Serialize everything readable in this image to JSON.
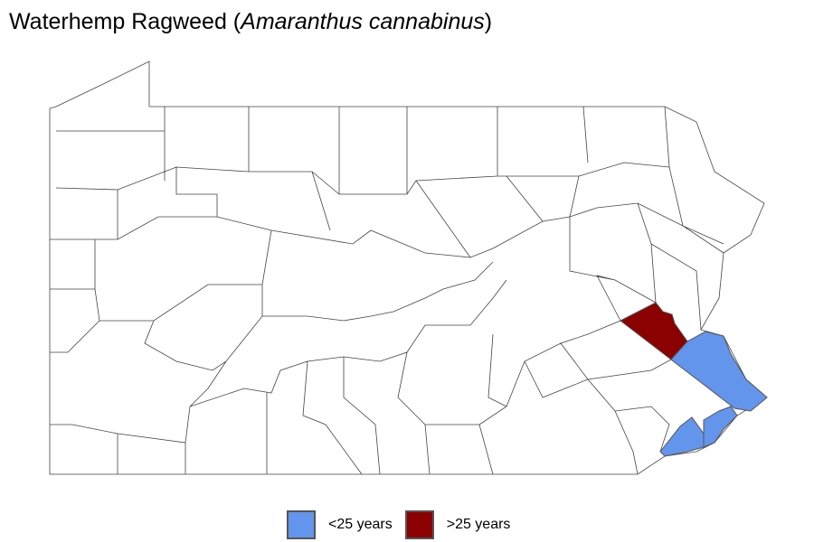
{
  "title": {
    "common_name": "Waterhemp Ragweed (",
    "scientific_name": "Amaranthus cannabinus",
    "close": ")"
  },
  "legend": [
    {
      "label": "<25 years",
      "color": "#6495ED"
    },
    {
      "label": ">25 years",
      "color": "#8B0000"
    }
  ],
  "map": {
    "region": "Pennsylvania counties",
    "highlighted": [
      {
        "county": "Lehigh",
        "category": ">25 years"
      },
      {
        "county": "Bucks",
        "category": "<25 years"
      },
      {
        "county": "Philadelphia",
        "category": "<25 years"
      },
      {
        "county": "Delaware",
        "category": "<25 years"
      }
    ]
  }
}
